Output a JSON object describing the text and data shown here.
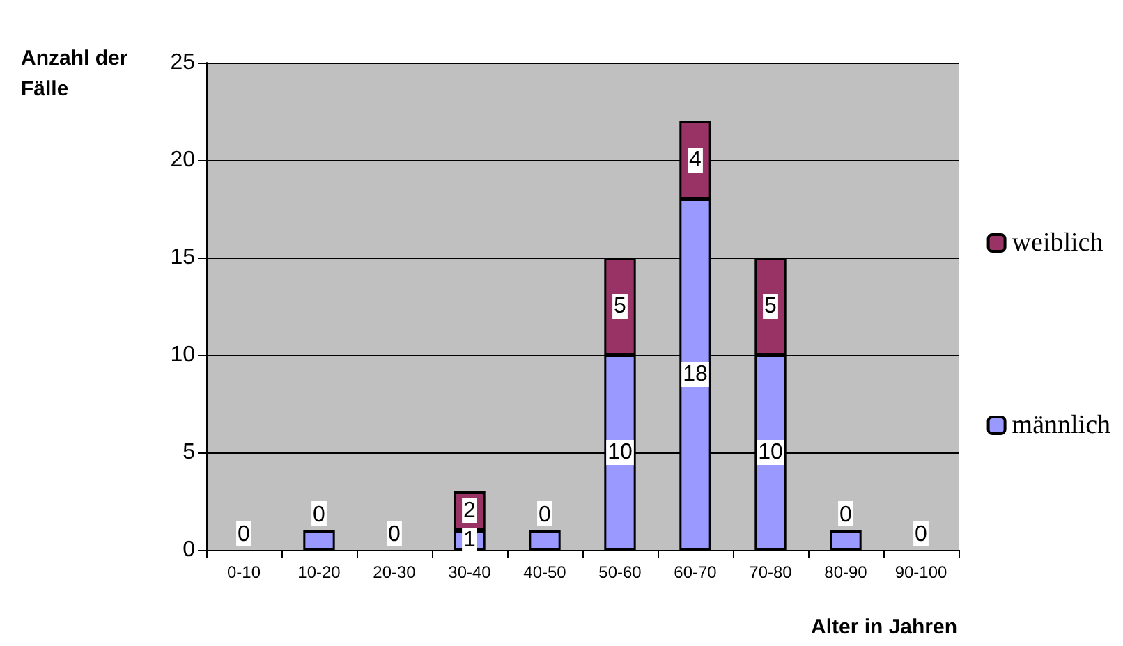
{
  "chart_data": {
    "type": "bar",
    "stacked": true,
    "ylabel": "Anzahl der Fälle",
    "xlabel": "Alter in Jahren",
    "categories": [
      "0-10",
      "10-20",
      "20-30",
      "30-40",
      "40-50",
      "50-60",
      "60-70",
      "70-80",
      "80-90",
      "90-100"
    ],
    "series": [
      {
        "name": "männlich",
        "color": "#9999ff",
        "values": [
          0,
          1,
          0,
          1,
          1,
          10,
          18,
          10,
          1,
          0
        ],
        "value_labels": [
          null,
          null,
          null,
          "1",
          null,
          "10",
          "18",
          "10",
          null,
          null
        ]
      },
      {
        "name": "weiblich",
        "color": "#993366",
        "values": [
          0,
          0,
          0,
          2,
          0,
          5,
          4,
          5,
          0,
          0
        ],
        "value_labels": [
          "0",
          "0",
          "0",
          "2",
          "0",
          "5",
          "4",
          "5",
          "0",
          "0"
        ]
      }
    ],
    "ylim": [
      0,
      25
    ],
    "yticks": [
      0,
      5,
      10,
      15,
      20,
      25
    ],
    "grid": "y",
    "legend": "right"
  }
}
